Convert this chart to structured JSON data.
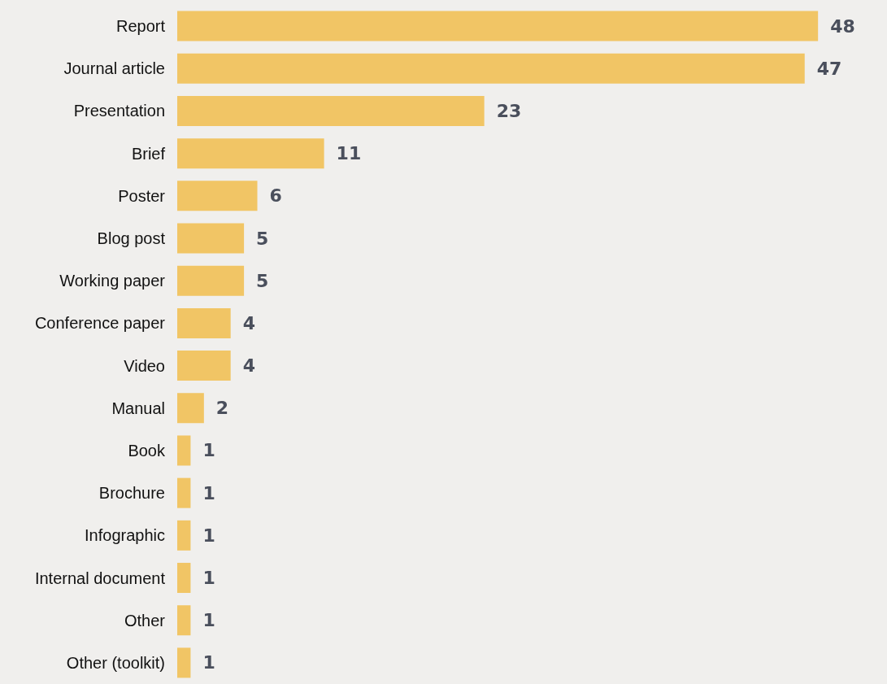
{
  "chart_data": {
    "type": "bar",
    "orientation": "horizontal",
    "categories": [
      "Report",
      "Journal article",
      "Presentation",
      "Brief",
      "Poster",
      "Blog post",
      "Working paper",
      "Conference paper",
      "Video",
      "Manual",
      "Book",
      "Brochure",
      "Infographic",
      "Internal document",
      "Other",
      "Other (toolkit)"
    ],
    "values": [
      48,
      47,
      23,
      11,
      6,
      5,
      5,
      4,
      4,
      2,
      1,
      1,
      1,
      1,
      1,
      1
    ],
    "color": "#f1c565",
    "data_labels": true
  }
}
